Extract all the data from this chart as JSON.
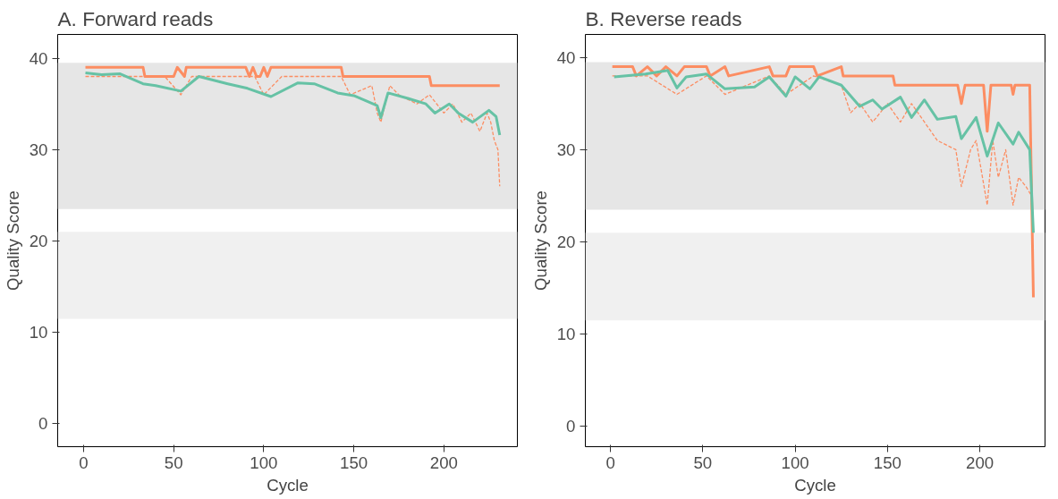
{
  "chart_data": [
    {
      "type": "line",
      "title": "A. Forward reads",
      "xlabel": "Cycle",
      "ylabel": "Quality Score",
      "xlim": [
        -14.4,
        240.8
      ],
      "ylim": [
        -2.5,
        42.6
      ],
      "xticks": [
        0,
        50,
        100,
        150,
        200
      ],
      "yticks": [
        0,
        10,
        20,
        30,
        40
      ],
      "grid": false,
      "bands": [
        {
          "axis": "y",
          "from": 23.5,
          "to": 39.5,
          "color": "#e6e6e6"
        },
        {
          "axis": "y",
          "from": 11.5,
          "to": 21,
          "color": "#f0f0f0"
        }
      ],
      "series": [
        {
          "color": "#fc8d62",
          "line_style": "dashed",
          "x": [
            1,
            20,
            33,
            45,
            54,
            60,
            80,
            95,
            100,
            110,
            130,
            143,
            148,
            160,
            163,
            165,
            170,
            175,
            185,
            192,
            200,
            205,
            210,
            215,
            220,
            224,
            226,
            228,
            230,
            231
          ],
          "values": [
            38,
            38,
            38,
            38,
            36,
            38,
            38,
            38,
            36,
            38,
            38,
            38,
            36,
            37,
            34,
            33,
            37,
            36,
            35,
            36,
            34,
            35,
            33,
            34,
            32,
            34,
            33,
            31,
            30,
            26
          ]
        },
        {
          "color": "#fc8d62",
          "line_style": "solid",
          "x": [
            1,
            33,
            34,
            50,
            52,
            56,
            57,
            90,
            92,
            94,
            96,
            98,
            100,
            102,
            104,
            143,
            144,
            192,
            193,
            231
          ],
          "values": [
            39,
            39,
            38,
            38,
            39,
            38,
            39,
            39,
            38,
            39,
            38,
            38,
            39,
            38,
            39,
            39,
            38,
            38,
            37,
            37
          ]
        },
        {
          "color": "#66c2a5",
          "line_style": "solid",
          "x": [
            1,
            10,
            20,
            33,
            40,
            54,
            64,
            80,
            91,
            104,
            119,
            128,
            141,
            150,
            163,
            165,
            169,
            180,
            190,
            195,
            203,
            208,
            216,
            225,
            229,
            231
          ],
          "values": [
            38.4,
            38.2,
            38.3,
            37.2,
            37.0,
            36.4,
            38.0,
            37.2,
            36.7,
            35.8,
            37.3,
            37.2,
            36.2,
            35.9,
            34.8,
            33.5,
            36.2,
            35.6,
            35.0,
            34.0,
            35.0,
            34.0,
            33.0,
            34.3,
            33.6,
            31.6
          ]
        }
      ]
    },
    {
      "type": "line",
      "title": "B. Reverse reads",
      "xlabel": "Cycle",
      "ylabel": "Quality Score",
      "xlim": [
        -13.6,
        235.3
      ],
      "ylim": [
        -2.2,
        42.5
      ],
      "xticks": [
        0,
        50,
        100,
        150,
        200
      ],
      "yticks": [
        0,
        10,
        20,
        30,
        40
      ],
      "grid": false,
      "bands": [
        {
          "axis": "y",
          "from": 23.5,
          "to": 39.5,
          "color": "#e6e6e6"
        },
        {
          "axis": "y",
          "from": 11.5,
          "to": 21,
          "color": "#f0f0f0"
        }
      ],
      "series": [
        {
          "color": "#fc8d62",
          "line_style": "dashed",
          "x": [
            1,
            20,
            36,
            52,
            62,
            86,
            95,
            110,
            125,
            130,
            135,
            142,
            150,
            157,
            163,
            170,
            177,
            187,
            190,
            195,
            198,
            204,
            207,
            210,
            214,
            218,
            221,
            225,
            228,
            229
          ],
          "values": [
            38,
            38,
            36,
            38,
            36,
            38,
            36,
            38,
            37,
            34,
            35,
            33,
            35,
            33,
            35,
            33,
            31,
            30,
            26,
            30,
            31,
            24,
            31,
            27,
            30,
            24,
            27,
            26,
            25,
            14
          ]
        },
        {
          "color": "#fc8d62",
          "line_style": "solid",
          "x": [
            1,
            12,
            14,
            20,
            25,
            30,
            36,
            40,
            52,
            54,
            62,
            64,
            86,
            88,
            95,
            97,
            110,
            112,
            125,
            126,
            153,
            154,
            188,
            190,
            192,
            202,
            204,
            206,
            217,
            218,
            219,
            227,
            229
          ],
          "values": [
            39,
            39,
            38,
            39,
            38,
            39,
            38,
            39,
            39,
            38,
            39,
            38,
            39,
            38,
            38,
            39,
            39,
            38,
            39,
            38,
            38,
            37,
            37,
            35,
            37,
            37,
            32,
            37,
            37,
            36,
            37,
            37,
            14
          ]
        },
        {
          "color": "#66c2a5",
          "line_style": "solid",
          "x": [
            2,
            19,
            31,
            36,
            41,
            52,
            62,
            78,
            86,
            95,
            100,
            108,
            113,
            125,
            135,
            142,
            147,
            157,
            163,
            170,
            177,
            187,
            190,
            198,
            204,
            210,
            218,
            221,
            227,
            229
          ],
          "values": [
            37.9,
            38.2,
            38.6,
            36.7,
            37.9,
            38.2,
            36.6,
            36.8,
            37.9,
            35.8,
            37.9,
            36.6,
            37.9,
            37.0,
            34.7,
            35.4,
            34.4,
            35.7,
            33.5,
            35.4,
            33.3,
            33.6,
            31.2,
            33.5,
            29.3,
            32.9,
            30.6,
            31.9,
            30.0,
            21.0
          ]
        }
      ]
    }
  ]
}
